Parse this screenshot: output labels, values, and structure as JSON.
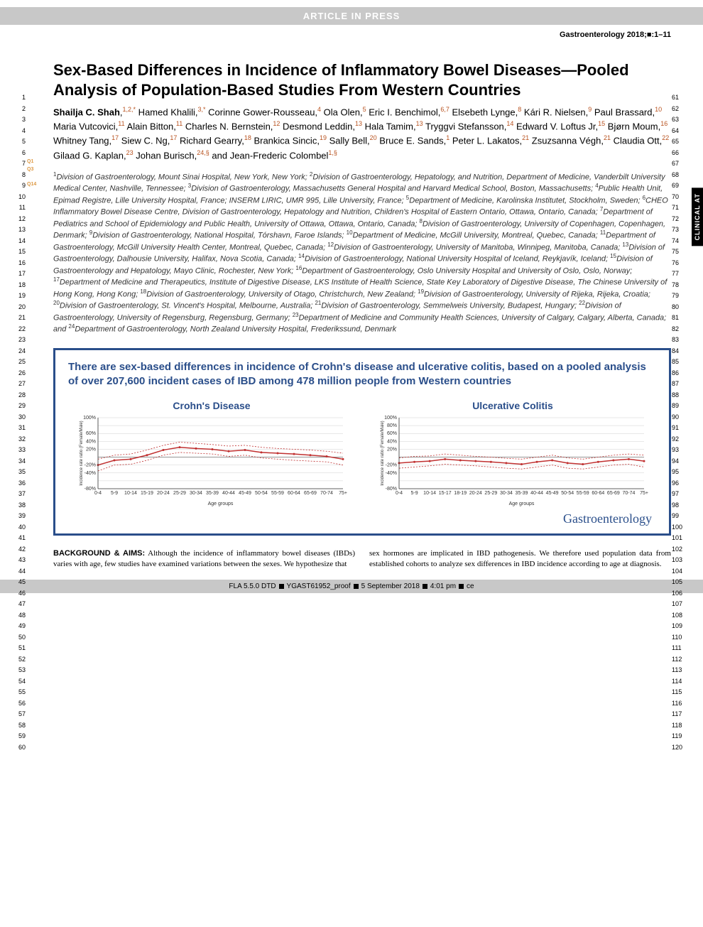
{
  "banner": "ARTICLE IN PRESS",
  "journal": "Gastroenterology 2018;■:1–11",
  "clinical_tab": "CLINICAL AT",
  "q_labels": [
    "Q1",
    "Q3",
    "Q2"
  ],
  "q_label_authors": "Q14",
  "title": "Sex-Based Differences in Incidence of Inflammatory Bowel Diseases—Pooled Analysis of Population-Based Studies From Western Countries",
  "authors_html": "<span class='first-name'>Shailja C. Shah</span>,<sup>1,2,*</sup> Hamed Khalili,<sup>3,*</sup> Corinne Gower-Rousseau,<sup>4</sup> Ola Olen,<sup>5</sup> Eric I. Benchimol,<sup>6,7</sup> Elsebeth Lynge,<sup>8</sup> Kári R. Nielsen,<sup>9</sup> Paul Brassard,<sup>10</sup> Maria Vutcovici,<sup>11</sup> Alain Bitton,<sup>11</sup> Charles N. Bernstein,<sup>12</sup> Desmond Leddin,<sup>13</sup> Hala Tamim,<sup>13</sup> Tryggvi Stefansson,<sup>14</sup> Edward V. Loftus Jr,<sup>15</sup> Bjørn Moum,<sup>16</sup> Whitney Tang,<sup>17</sup> Siew C. Ng,<sup>17</sup> Richard Gearry,<sup>18</sup> Brankica Sincic,<sup>19</sup> Sally Bell,<sup>20</sup> Bruce E. Sands,<sup>1</sup> Peter L. Lakatos,<sup>21</sup> Zsuzsanna Végh,<sup>21</sup> Claudia Ott,<sup>22</sup> Gilaad G. Kaplan,<sup>23</sup> Johan Burisch,<sup>24,§</sup> and Jean-Frederic Colombel<sup>1,§</sup>",
  "affiliations": "<sup>1</sup>Division of Gastroenterology, Mount Sinai Hospital, New York, New York; <sup>2</sup>Division of Gastroenterology, Hepatology, and Nutrition, Department of Medicine, Vanderbilt University Medical Center, Nashville, Tennessee; <sup>3</sup>Division of Gastroenterology, Massachusetts General Hospital and Harvard Medical School, Boston, Massachusetts; <sup>4</sup>Public Health Unit, Epimad Registre, Lille University Hospital, France; INSERM LIRIC, UMR 995, Lille University, France; <sup>5</sup>Department of Medicine, Karolinska Institutet, Stockholm, Sweden; <sup>6</sup>CHEO Inflammatory Bowel Disease Centre, Division of Gastroenterology, Hepatology and Nutrition, Children's Hospital of Eastern Ontario, Ottawa, Ontario, Canada; <sup>7</sup>Department of Pediatrics and School of Epidemiology and Public Health, University of Ottawa, Ottawa, Ontario, Canada; <sup>8</sup>Division of Gastroenterology, University of Copenhagen, Copenhagen, Denmark; <sup>9</sup>Division of Gastroenterology, National Hospital, Tórshavn, Faroe Islands; <sup>10</sup>Department of Medicine, McGill University, Montreal, Quebec, Canada; <sup>11</sup>Department of Gastroenterology, McGill University Health Center, Montreal, Quebec, Canada; <sup>12</sup>Division of Gastroenterology, University of Manitoba, Winnipeg, Manitoba, Canada; <sup>13</sup>Division of Gastroenterology, Dalhousie University, Halifax, Nova Scotia, Canada; <sup>14</sup>Division of Gastroenterology, National University Hospital of Iceland, Reykjavík, Iceland; <sup>15</sup>Division of Gastroenterology and Hepatology, Mayo Clinic, Rochester, New York; <sup>16</sup>Department of Gastroenterology, Oslo University Hospital and University of Oslo, Oslo, Norway; <sup>17</sup>Department of Medicine and Therapeutics, Institute of Digestive Disease, LKS Institute of Health Science, State Key Laboratory of Digestive Disease, The Chinese University of Hong Kong, Hong Kong; <sup>18</sup>Division of Gastroenterology, University of Otago, Christchurch, New Zealand; <sup>19</sup>Division of Gastroenterology, University of Rijeka, Rijeka, Croatia; <sup>20</sup>Division of Gastroenterology, St. Vincent's Hospital, Melbourne, Australia; <sup>21</sup>Division of Gastroenterology, Semmelweis University, Budapest, Hungary; <sup>22</sup>Division of Gastroenterology, University of Regensburg, Regensburg, Germany; <sup>23</sup>Department of Medicine and Community Health Sciences, University of Calgary, Calgary, Alberta, Canada; and <sup>24</sup>Department of Gastroenterology, North Zealand University Hospital, Frederikssund, Denmark",
  "figure": {
    "summary": "There are sex-based differences in incidence of Crohn's disease and ulcerative colitis, based on a pooled analysis of over 207,600 incident cases of IBD among 478 million people from Western countries",
    "border_color": "#2a4e8a",
    "chart1": {
      "title": "Crohn's Disease",
      "type": "line",
      "ylabel": "Incidence rate ratio (Female/Male)",
      "xlabel": "Age groups",
      "ylim": [
        -80,
        100
      ],
      "yticks": [
        "100%",
        "60%",
        "40%",
        "20%",
        "-20%",
        "-40%",
        "-80%"
      ],
      "xticks": [
        "0-4",
        "5-9",
        "10-14",
        "15-19",
        "20-24",
        "25-29",
        "30-34",
        "35-39",
        "40-44",
        "45-49",
        "50-54",
        "55-59",
        "60-64",
        "65-69",
        "70-74",
        "75+"
      ],
      "line_color": "#c03030",
      "ci_color": "#c03030",
      "values": [
        -20,
        -8,
        -5,
        5,
        18,
        25,
        22,
        20,
        15,
        18,
        12,
        10,
        8,
        5,
        2,
        -5
      ],
      "ci_upper": [
        -5,
        5,
        8,
        18,
        30,
        38,
        35,
        32,
        28,
        30,
        25,
        22,
        20,
        18,
        15,
        10
      ],
      "ci_lower": [
        -35,
        -20,
        -18,
        -8,
        5,
        12,
        10,
        8,
        2,
        5,
        -2,
        -5,
        -8,
        -10,
        -12,
        -20
      ],
      "grid_color": "#d0d0d0",
      "bg": "#ffffff"
    },
    "chart2": {
      "title": "Ulcerative Colitis",
      "type": "line",
      "ylabel": "Incidence rate ratio (Female/Male)",
      "xlabel": "Age groups",
      "ylim": [
        -80,
        100
      ],
      "yticks": [
        "100%",
        "80%",
        "60%",
        "40%",
        "20%",
        "-20%",
        "-40%",
        "-80%"
      ],
      "xticks": [
        "0-4",
        "5-9",
        "10-14",
        "15-17",
        "18-19",
        "20-24",
        "25-29",
        "30-34",
        "35-39",
        "40-44",
        "45-49",
        "50-54",
        "55-59",
        "60-64",
        "65-69",
        "70-74",
        "75+"
      ],
      "line_color": "#c03030",
      "ci_color": "#c03030",
      "values": [
        -15,
        -12,
        -10,
        -5,
        -8,
        -10,
        -12,
        -15,
        -18,
        -12,
        -8,
        -15,
        -18,
        -12,
        -8,
        -5,
        -10
      ],
      "ci_upper": [
        -2,
        2,
        3,
        8,
        5,
        2,
        0,
        -3,
        -5,
        0,
        5,
        -2,
        -5,
        0,
        5,
        8,
        5
      ],
      "ci_lower": [
        -28,
        -25,
        -22,
        -18,
        -20,
        -22,
        -25,
        -28,
        -30,
        -25,
        -20,
        -28,
        -30,
        -25,
        -20,
        -18,
        -25
      ],
      "grid_color": "#d0d0d0",
      "bg": "#ffffff"
    },
    "gastro_label": "Gastroenterology"
  },
  "abstract": {
    "heading": "BACKGROUND & AIMS:",
    "col1": "Although the incidence of inflammatory bowel diseases (IBDs) varies with age, few studies have examined variations between the sexes. We hypothesize that",
    "col2": "sex hormones are implicated in IBD pathogenesis. We therefore used population data from established cohorts to analyze sex differences in IBD incidence according to age at diagnosis."
  },
  "footer": {
    "parts": [
      "FLA 5.5.0 DTD",
      "YGAST61952_proof",
      "5 September 2018",
      "4:01 pm",
      "ce"
    ]
  },
  "line_numbers_left": {
    "start": 1,
    "end": 60
  },
  "line_numbers_right": {
    "start": 61,
    "end": 120
  }
}
